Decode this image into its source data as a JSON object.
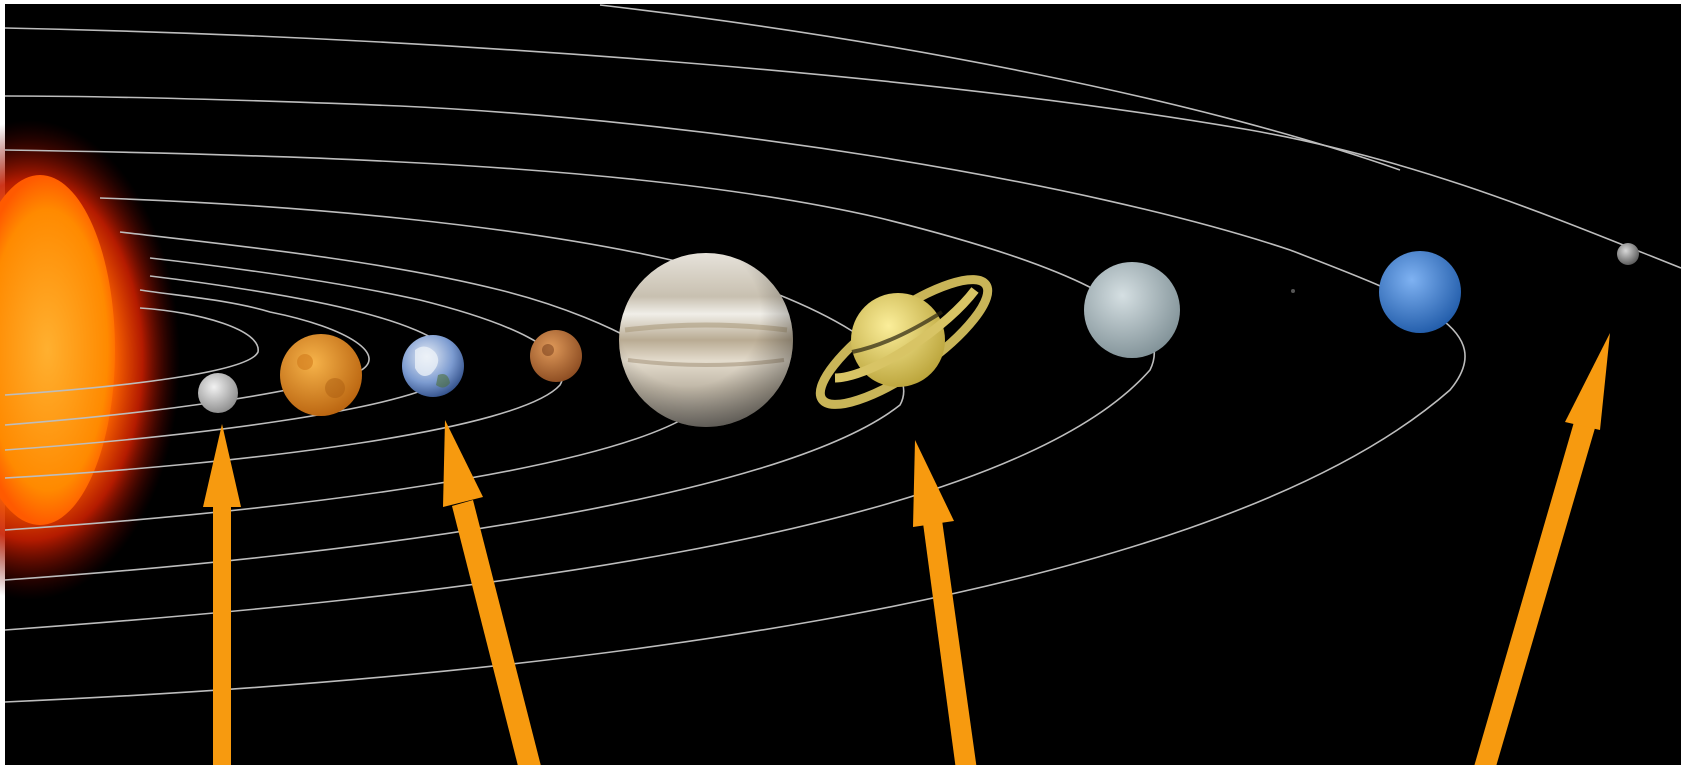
{
  "scene": {
    "background": "#000000",
    "frame_color": "#ffffff",
    "orbit_color": "#bdbdbd",
    "arrow_color": "#f79a0f"
  },
  "bodies": [
    {
      "name": "sun-icon",
      "color": "#ff7a00"
    },
    {
      "name": "mercury-icon",
      "color": "#cfcfcf"
    },
    {
      "name": "venus-icon",
      "color": "#e08a1a"
    },
    {
      "name": "earth-icon",
      "color": "#6f8fc8"
    },
    {
      "name": "mars-icon",
      "color": "#c47a3a"
    },
    {
      "name": "jupiter-icon",
      "color": "#d8d2c6"
    },
    {
      "name": "saturn-icon",
      "color": "#e8d36a"
    },
    {
      "name": "uranus-icon",
      "color": "#a9b8bd"
    },
    {
      "name": "neptune-icon",
      "color": "#3c7fd8"
    },
    {
      "name": "pluto-icon",
      "color": "#9c9c9c"
    }
  ],
  "arrows": [
    {
      "name": "arrow-to-mercury"
    },
    {
      "name": "arrow-to-earth"
    },
    {
      "name": "arrow-to-saturn"
    },
    {
      "name": "arrow-to-pluto"
    }
  ]
}
